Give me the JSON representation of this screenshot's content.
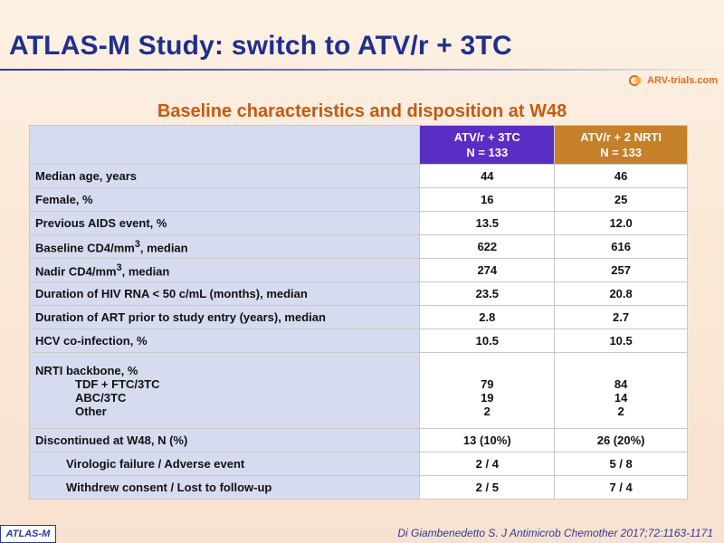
{
  "title": "ATLAS-M Study: switch to ATV/r + 3TC",
  "logo_text": "ARV-trials.com",
  "subtitle": "Baseline characteristics and disposition at W48",
  "columns": [
    {
      "name": "ATV/r + 3TC",
      "n": "N = 133",
      "color": "#5a2dc4"
    },
    {
      "name": "ATV/r + 2 NRTI",
      "n": "N = 133",
      "color": "#c67f2a"
    }
  ],
  "rows": {
    "age": {
      "label": "Median age, years",
      "a": "44",
      "b": "46"
    },
    "female": {
      "label": "Female, %",
      "a": "16",
      "b": "25"
    },
    "aids": {
      "label": "Previous AIDS event, %",
      "a": "13.5",
      "b": "12.0"
    },
    "cd4": {
      "label_pre": "Baseline CD4/mm",
      "sup": "3",
      "label_post": ", median",
      "a": "622",
      "b": "616"
    },
    "nadir": {
      "label_pre": "Nadir CD4/mm",
      "sup": "3",
      "label_post": ", median",
      "a": "274",
      "b": "257"
    },
    "hivrna": {
      "label": "Duration of HIV RNA < 50 c/mL (months), median",
      "a": "23.5",
      "b": "20.8"
    },
    "art": {
      "label": "Duration of ART prior to study entry (years), median",
      "a": "2.8",
      "b": "2.7"
    },
    "hcv": {
      "label": "HCV co-infection, %",
      "a": "10.5",
      "b": "10.5"
    },
    "nrti": {
      "label": "NRTI backbone, %",
      "items": [
        {
          "label": "TDF + FTC/3TC",
          "a": "79",
          "b": "84"
        },
        {
          "label": "ABC/3TC",
          "a": "19",
          "b": "14"
        },
        {
          "label": "Other",
          "a": "2",
          "b": "2"
        }
      ]
    },
    "disc": {
      "label": "Discontinued at W48, N (%)",
      "a": "13 (10%)",
      "b": "26 (20%)"
    },
    "vf": {
      "label": "Virologic failure / Adverse event",
      "a": "2 / 4",
      "b": "5 / 8"
    },
    "wc": {
      "label": "Withdrew consent / Lost to follow-up",
      "a": "2 / 5",
      "b": "7 / 4"
    }
  },
  "reference": "Di Giambenedetto S. J Antimicrob Chemother 2017;72:1163-1171",
  "badge": "ATLAS-M",
  "colors": {
    "title": "#1f2f8f",
    "subtitle": "#c55a11",
    "label_bg": "#d6dcef"
  }
}
